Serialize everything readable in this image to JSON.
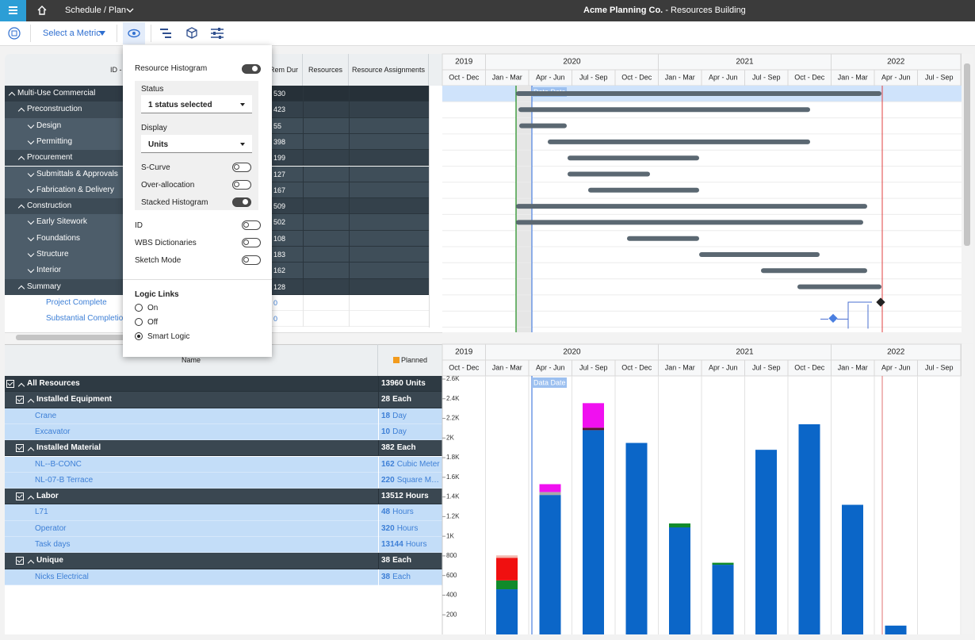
{
  "header": {
    "breadcrumb": "Schedule / Plan",
    "company": "Acme Planning Co.",
    "project": "- Resources Building"
  },
  "toolbar": {
    "metric": "Select a Metric"
  },
  "activities": {
    "columns": [
      "ID - Description",
      "Rem Dur",
      "Resources",
      "Resource Assignments"
    ],
    "rows": [
      {
        "name": "Multi-Use Commercial",
        "dur": 530
      },
      {
        "name": "Preconstruction",
        "dur": 423
      },
      {
        "name": "Design",
        "dur": 55
      },
      {
        "name": "Permitting",
        "dur": 398
      },
      {
        "name": "Procurement",
        "dur": 199
      },
      {
        "name": "Submittals & Approvals",
        "dur": 127
      },
      {
        "name": "Fabrication & Delivery",
        "dur": 167
      },
      {
        "name": "Construction",
        "dur": 509
      },
      {
        "name": "Early Sitework",
        "dur": 502
      },
      {
        "name": "Foundations",
        "dur": 108
      },
      {
        "name": "Structure",
        "dur": 183
      },
      {
        "name": "Interior",
        "dur": 162
      },
      {
        "name": "Summary",
        "dur": 128
      },
      {
        "name": "Project Complete",
        "dur": 0
      },
      {
        "name": "Substantial Completion",
        "dur": 0
      }
    ]
  },
  "popup": {
    "title": "Resource Histogram",
    "on": true,
    "status_label": "Status",
    "status": "1 status selected",
    "display_label": "Display",
    "display": "Units",
    "options": [
      {
        "label": "S-Curve",
        "on": false
      },
      {
        "label": "Over-allocation",
        "on": false
      },
      {
        "label": "Stacked Histogram",
        "on": true
      }
    ],
    "general": [
      {
        "label": "ID",
        "on": false
      },
      {
        "label": "WBS Dictionaries",
        "on": false
      },
      {
        "label": "Sketch Mode",
        "on": false
      }
    ],
    "logic": {
      "title": "Logic Links",
      "options": [
        "On",
        "Off",
        "Smart Logic"
      ],
      "selected": 2
    }
  },
  "resources": {
    "columns": [
      "Name",
      "Planned"
    ],
    "planned_color": "#f29b1d",
    "rows": [
      {
        "name": "All Resources",
        "amount": 13960,
        "unit": "Units"
      },
      {
        "name": "Installed Equipment",
        "amount": 28,
        "unit": "Each"
      },
      {
        "name": "Crane",
        "amount": 18,
        "unit": "Day"
      },
      {
        "name": "Excavator",
        "amount": 10,
        "unit": "Day"
      },
      {
        "name": "Installed Material",
        "amount": 382,
        "unit": "Each"
      },
      {
        "name": "NL--B-CONC",
        "amount": 162,
        "unit": "Cubic Meter"
      },
      {
        "name": "NL-07-B Terrace",
        "amount": 220,
        "unit": "Square Me..."
      },
      {
        "name": "Labor",
        "amount": 13512,
        "unit": "Hours"
      },
      {
        "name": "L71",
        "amount": 48,
        "unit": "Hours"
      },
      {
        "name": "Operator",
        "amount": 320,
        "unit": "Hours"
      },
      {
        "name": "Task days",
        "amount": 13144,
        "unit": "Hours"
      },
      {
        "name": "Unique",
        "amount": 38,
        "unit": "Each"
      },
      {
        "name": "Nicks Electrical",
        "amount": 38,
        "unit": "Each"
      }
    ]
  },
  "chart_data": {
    "type": "bar",
    "stacked": true,
    "years": [
      "2019",
      "2020",
      "2021",
      "2022"
    ],
    "categories": [
      "Oct - Dec",
      "Jan - Mar",
      "Apr - Jun",
      "Jul - Sep",
      "Oct - Dec",
      "Jan - Mar",
      "Apr - Jun",
      "Jul - Sep",
      "Oct - Dec",
      "Jan - Mar",
      "Apr - Jun",
      "Jul - Sep"
    ],
    "series": [
      {
        "color": "#0b66c8",
        "values": [
          null,
          460,
          1420,
          2080,
          1950,
          1090,
          710,
          1880,
          2140,
          1320,
          90,
          null
        ]
      },
      {
        "color": "#108a2a",
        "values": [
          null,
          90,
          null,
          null,
          null,
          40,
          20,
          null,
          null,
          null,
          null,
          null
        ]
      },
      {
        "color": "#f01010",
        "values": [
          null,
          230,
          null,
          null,
          null,
          null,
          null,
          null,
          null,
          null,
          null,
          null
        ]
      },
      {
        "color": "#a8a8a8",
        "values": [
          null,
          null,
          30,
          null,
          null,
          null,
          null,
          null,
          null,
          null,
          null,
          null
        ]
      },
      {
        "color": "#5a1230",
        "values": [
          null,
          null,
          null,
          25,
          null,
          null,
          null,
          null,
          null,
          null,
          null,
          null
        ]
      },
      {
        "color": "#f010f0",
        "values": [
          null,
          null,
          80,
          250,
          null,
          null,
          null,
          null,
          null,
          null,
          null,
          null
        ]
      },
      {
        "color": "#f3b9b0",
        "values": [
          null,
          25,
          null,
          null,
          null,
          null,
          null,
          null,
          null,
          null,
          null,
          null
        ]
      }
    ],
    "ylim": [
      0,
      2600
    ],
    "yticks": [
      200,
      400,
      600,
      800,
      {
        "value": 1000,
        "label": "1K"
      },
      {
        "value": 1200,
        "label": "1.2K"
      },
      {
        "value": 1400,
        "label": "1.4K"
      },
      {
        "value": 1600,
        "label": "1.6K"
      },
      {
        "value": 1800,
        "label": "1.8K"
      },
      {
        "value": 2000,
        "label": "2K"
      },
      {
        "value": 2200,
        "label": "2.2K"
      },
      {
        "value": 2400,
        "label": "2.4K"
      },
      {
        "value": 2600,
        "label": "2.6K"
      }
    ],
    "annotation": "Data Date"
  }
}
